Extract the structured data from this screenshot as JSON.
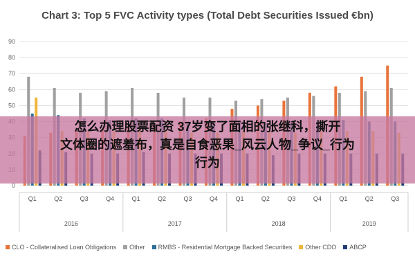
{
  "chart_data": {
    "type": "bar",
    "title": "Chart 3: Top 5 FVC Activity types (Total Debt Securities Issued €bn)",
    "ylim": [
      0,
      90
    ],
    "yticks": [
      0,
      10,
      20,
      30,
      40,
      50,
      60,
      70,
      80,
      90
    ],
    "grid": true,
    "legend_position": "bottom",
    "categories": [
      "Q1",
      "Q2",
      "Q3",
      "Q4",
      "Q1",
      "Q2",
      "Q3",
      "Q4",
      "Q1",
      "Q2",
      "Q3",
      "Q4",
      "Q1",
      "Q2",
      "Q3"
    ],
    "years": [
      {
        "label": "2016",
        "span": 4
      },
      {
        "label": "2017",
        "span": 4
      },
      {
        "label": "2018",
        "span": 4
      },
      {
        "label": "2019",
        "span": 3
      }
    ],
    "series": [
      {
        "name": "CLO - Collateralised Loan Obligations",
        "color": "#e8743b",
        "values": [
          31,
          33,
          34,
          35,
          36,
          38,
          40,
          42,
          48,
          50,
          53,
          58,
          62,
          68,
          75
        ]
      },
      {
        "name": "Other",
        "color": "#a0a0a0",
        "values": [
          68,
          61,
          58,
          59,
          61,
          58,
          55,
          55,
          53,
          54,
          55,
          56,
          58,
          59,
          61
        ]
      },
      {
        "name": "RMBS - Residential Mortgage Backed Securities",
        "color": "#2e6f96",
        "values": [
          45,
          44,
          42,
          41,
          42,
          42,
          40,
          39,
          40,
          39,
          40,
          39,
          41,
          40,
          40
        ]
      },
      {
        "name": "Other CDO",
        "color": "#f0b63a",
        "values": [
          55,
          34,
          34,
          34,
          35,
          34,
          33,
          33,
          34,
          34,
          33,
          34,
          34,
          34,
          33
        ]
      },
      {
        "name": "ABCP",
        "color": "#1f3d73",
        "values": [
          22,
          21,
          20,
          20,
          21,
          20,
          20,
          20,
          20,
          19,
          20,
          20,
          20,
          20,
          20
        ]
      }
    ]
  },
  "overlay": {
    "line1": "怎么办理股票配资 37岁变了面相的张继科，撕开",
    "line2": "文体圈的遮羞布，真是自食恶果_风云人物_争议_行为",
    "line3": "行为"
  }
}
